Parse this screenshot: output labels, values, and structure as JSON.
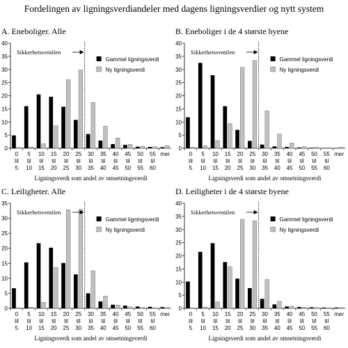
{
  "title": "Fordelingen av ligningsverdiandeler med dagens ligningsverdier og nytt system",
  "colors": {
    "old": "#000000",
    "new": "#c0c0c0"
  },
  "chart_data": [
    {
      "type": "bar",
      "title": "A. Eneboliger. Alle",
      "annotation": "Sikkerhetsventilen",
      "xlabel": "Ligningsverdi som andel av omsetningsverdi",
      "ylim": [
        0,
        40
      ],
      "yticks": [
        0,
        5,
        10,
        15,
        20,
        25,
        30,
        35,
        40
      ],
      "categories": [
        "0 til 5",
        "5 til 10",
        "10 til 15",
        "15 til 20",
        "20 til 25",
        "25 til 30",
        "30 til 35",
        "35 til 40",
        "40 til 45",
        "45 til 50",
        "50 til 55",
        "55 til 60",
        "mer"
      ],
      "category_lines": [
        [
          "0",
          "til",
          "5"
        ],
        [
          "5",
          "til",
          "10"
        ],
        [
          "10",
          "til",
          "15"
        ],
        [
          "15",
          "til",
          "20"
        ],
        [
          "20",
          "til",
          "25"
        ],
        [
          "25",
          "til",
          "30"
        ],
        [
          "30",
          "til",
          "35"
        ],
        [
          "35",
          "til",
          "40"
        ],
        [
          "40",
          "til",
          "45"
        ],
        [
          "45",
          "til",
          "50"
        ],
        [
          "50",
          "til",
          "55"
        ],
        [
          "55",
          "til",
          "60"
        ],
        [
          "mer"
        ]
      ],
      "series": [
        {
          "name": "Gammel ligningsverdi",
          "values": [
            4.9,
            16.0,
            20.5,
            19.6,
            15.8,
            10.8,
            5.4,
            2.9,
            1.6,
            1.3,
            0.6,
            0.5,
            0.4
          ]
        },
        {
          "name": "Ny ligningsverdi",
          "values": [
            0.3,
            0.5,
            1.7,
            8.6,
            26.1,
            29.8,
            17.4,
            8.4,
            3.9,
            1.5,
            0.8,
            0.6,
            1.0
          ]
        }
      ]
    },
    {
      "type": "bar",
      "title": "B. Eneboliger i de 4 største byene",
      "annotation": "Sikkerhetsventilen",
      "xlabel": "Ligningsverdi som andel av omsetningsverdi",
      "ylim": [
        0,
        40
      ],
      "yticks": [
        0,
        5,
        10,
        15,
        20,
        25,
        30,
        35,
        40
      ],
      "categories": [
        "0 til 5",
        "5 til 10",
        "10 til 15",
        "15 til 20",
        "20 til 25",
        "25 til 30",
        "30 til 35",
        "35 til 40",
        "40 til 45",
        "45 til 50",
        "50 til 55",
        "55 til 60",
        "mer"
      ],
      "category_lines": [
        [
          "0",
          "til",
          "5"
        ],
        [
          "5",
          "til",
          "10"
        ],
        [
          "10",
          "til",
          "15"
        ],
        [
          "15",
          "til",
          "20"
        ],
        [
          "20",
          "til",
          "25"
        ],
        [
          "25",
          "til",
          "30"
        ],
        [
          "30",
          "til",
          "35"
        ],
        [
          "35",
          "til",
          "40"
        ],
        [
          "40",
          "til",
          "45"
        ],
        [
          "45",
          "til",
          "50"
        ],
        [
          "50",
          "til",
          "55"
        ],
        [
          "55",
          "til",
          "60"
        ],
        [
          "mer"
        ]
      ],
      "series": [
        {
          "name": "Gammel ligningsverdi",
          "values": [
            11.8,
            32.5,
            27.8,
            16.0,
            7.0,
            2.8,
            1.4,
            0.7,
            0.5,
            0.3,
            0.2,
            0.1,
            0.1
          ]
        },
        {
          "name": "Ny ligningsverdi",
          "values": [
            0.4,
            0.9,
            2.9,
            9.4,
            30.8,
            33.4,
            14.2,
            5.4,
            2.0,
            0.6,
            0.4,
            0.2,
            0.4
          ]
        }
      ]
    },
    {
      "type": "bar",
      "title": "C. Leiligheter. Alle",
      "annotation": "Sikkerhetsventilen",
      "xlabel": "Ligningsverdi som andel av omsetningsverdi",
      "ylim": [
        0,
        35
      ],
      "yticks": [
        0,
        5,
        10,
        15,
        20,
        25,
        30,
        35
      ],
      "categories": [
        "0 til 5",
        "5 til 10",
        "10 til 15",
        "15 til 20",
        "20 til 25",
        "25 til 30",
        "30 til 35",
        "35 til 40",
        "40 til 45",
        "45 til 50",
        "50 til 55",
        "55 til 60",
        "mer"
      ],
      "category_lines": [
        [
          "0",
          "til",
          "5"
        ],
        [
          "5",
          "til",
          "10"
        ],
        [
          "10",
          "til",
          "15"
        ],
        [
          "15",
          "til",
          "20"
        ],
        [
          "20",
          "til",
          "25"
        ],
        [
          "25",
          "til",
          "30"
        ],
        [
          "30",
          "til",
          "35"
        ],
        [
          "35",
          "til",
          "40"
        ],
        [
          "40",
          "til",
          "45"
        ],
        [
          "45",
          "til",
          "50"
        ],
        [
          "50",
          "til",
          "55"
        ],
        [
          "55",
          "til",
          "60"
        ],
        [
          "mer"
        ]
      ],
      "series": [
        {
          "name": "Gammel ligningsverdi",
          "values": [
            6.7,
            15.3,
            21.7,
            20.2,
            15.1,
            11.3,
            5.0,
            2.3,
            1.2,
            0.9,
            0.6,
            0.5,
            0.4
          ]
        },
        {
          "name": "Ny ligningsverdi",
          "values": [
            0.2,
            0.4,
            2.0,
            13.6,
            32.8,
            33.0,
            12.5,
            4.1,
            1.1,
            0.5,
            0.3,
            0.2,
            0.3
          ]
        }
      ]
    },
    {
      "type": "bar",
      "title": "D. Leiligheter i de 4 største byene",
      "annotation": "Sikkerhetsventilen",
      "xlabel": "Ligningsverdi som andel av omsetningsverdi",
      "ylim": [
        0,
        40
      ],
      "yticks": [
        0,
        5,
        10,
        15,
        20,
        25,
        30,
        35,
        40
      ],
      "categories": [
        "0 til 5",
        "5 til 10",
        "10 til 15",
        "15 til 20",
        "20 til 25",
        "25 til 30",
        "30 til 35",
        "35 til 40",
        "40 til 45",
        "45 til 50",
        "50 til 55",
        "55 til 60",
        "mer"
      ],
      "category_lines": [
        [
          "0",
          "til",
          "5"
        ],
        [
          "5",
          "til",
          "10"
        ],
        [
          "10",
          "til",
          "15"
        ],
        [
          "15",
          "til",
          "20"
        ],
        [
          "20",
          "til",
          "25"
        ],
        [
          "25",
          "til",
          "30"
        ],
        [
          "30",
          "til",
          "35"
        ],
        [
          "35",
          "til",
          "40"
        ],
        [
          "40",
          "til",
          "45"
        ],
        [
          "45",
          "til",
          "50"
        ],
        [
          "50",
          "til",
          "55"
        ],
        [
          "55",
          "til",
          "60"
        ],
        [
          "mer"
        ]
      ],
      "series": [
        {
          "name": "Gammel ligningsverdi",
          "values": [
            10.2,
            21.5,
            24.8,
            17.6,
            11.3,
            7.7,
            3.6,
            1.5,
            0.7,
            0.5,
            0.4,
            0.3,
            0.3
          ]
        },
        {
          "name": "Ny ligningsverdi",
          "values": [
            0.2,
            0.5,
            2.5,
            15.9,
            33.9,
            33.3,
            11.0,
            2.7,
            0.8,
            0.4,
            0.3,
            0.2,
            0.3
          ]
        }
      ]
    }
  ]
}
